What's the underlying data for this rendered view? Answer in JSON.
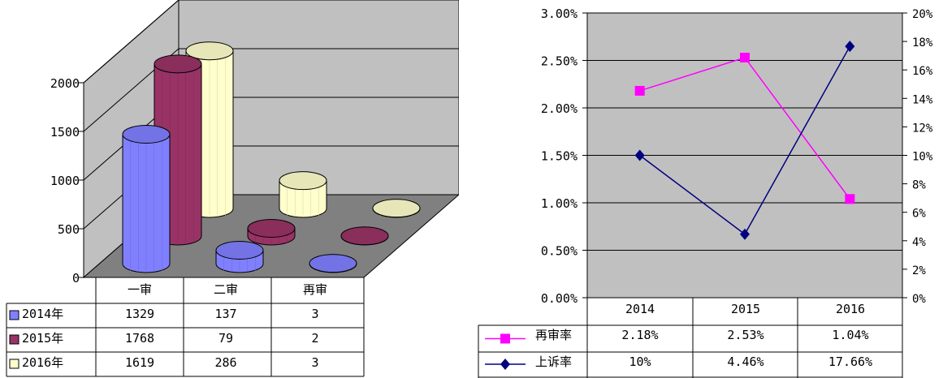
{
  "chart_data": [
    {
      "type": "bar",
      "style": "3d-cylinder",
      "categories": [
        "一审",
        "二审",
        "再审"
      ],
      "series": [
        {
          "name": "2014年",
          "values": [
            1329,
            137,
            3
          ],
          "color": "#8080ff"
        },
        {
          "name": "2015年",
          "values": [
            1768,
            79,
            2
          ],
          "color": "#993366"
        },
        {
          "name": "2016年",
          "values": [
            1619,
            286,
            3
          ],
          "color": "#ffffcc"
        }
      ],
      "table": {
        "rows": [
          [
            "1329",
            "137",
            "3"
          ],
          [
            "1768",
            "79",
            "2"
          ],
          [
            "1619",
            "286",
            "3"
          ]
        ]
      },
      "yticks": [
        "0",
        "500",
        "1000",
        "1500",
        "2000"
      ],
      "ylim": [
        0,
        2000
      ],
      "grid": true,
      "legend": "data-table"
    },
    {
      "type": "line",
      "categories": [
        "2014",
        "2015",
        "2016"
      ],
      "series": [
        {
          "name": "再审率",
          "axis": "left",
          "values": [
            2.18,
            2.53,
            1.04
          ],
          "labels": [
            "2.18%",
            "2.53%",
            "1.04%"
          ],
          "color": "#ff00ff",
          "marker": "square"
        },
        {
          "name": "上诉率",
          "axis": "right",
          "values": [
            10,
            4.46,
            17.66
          ],
          "labels": [
            "10%",
            "4.46%",
            "17.66%"
          ],
          "color": "#000080",
          "marker": "diamond"
        }
      ],
      "yticks_left": [
        "0.00%",
        "0.50%",
        "1.00%",
        "1.50%",
        "2.00%",
        "2.50%",
        "3.00%"
      ],
      "yticks_right": [
        "0%",
        "2%",
        "4%",
        "6%",
        "8%",
        "10%",
        "12%",
        "14%",
        "16%",
        "18%",
        "20%"
      ],
      "ylim_left": [
        0,
        3
      ],
      "ylim_right": [
        0,
        20
      ],
      "grid": true,
      "plot_background": "#c0c0c0",
      "legend": "data-table"
    }
  ]
}
